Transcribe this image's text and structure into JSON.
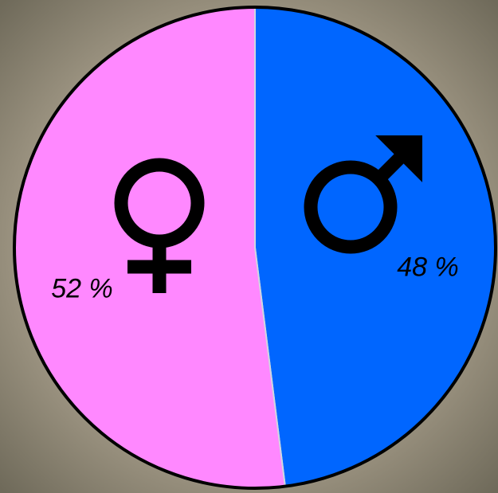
{
  "chart_data": {
    "type": "pie",
    "values": [
      48,
      52
    ],
    "value_labels": [
      "48 %",
      "52 %"
    ],
    "colors": [
      "#0066ff",
      "#ff88ff"
    ],
    "start_angle": 0,
    "direction": "clockwise"
  }
}
